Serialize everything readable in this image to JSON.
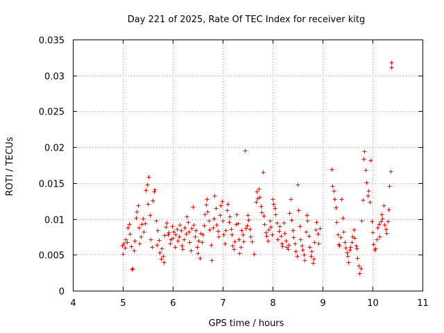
{
  "chart_data": {
    "type": "scatter",
    "title": "Day 221 of 2025, Rate Of TEC Index for receiver kitg",
    "xlabel": "GPS time / hours",
    "ylabel": "ROTI / TECUs",
    "xlim": [
      4,
      11
    ],
    "ylim": [
      0,
      0.035
    ],
    "x_ticks": [
      "4",
      "5",
      "6",
      "7",
      "8",
      "9",
      "10",
      "11"
    ],
    "y_ticks": [
      "0",
      "0.005",
      "0.01",
      "0.015",
      "0.02",
      "0.025",
      "0.03",
      "0.035"
    ],
    "grid": true,
    "marker": "+",
    "color": "#ff0000",
    "series": [
      {
        "name": "ROTI",
        "points": [
          [
            4.98,
            0.0063
          ],
          [
            5.0,
            0.0051
          ],
          [
            5.02,
            0.0066
          ],
          [
            5.04,
            0.006
          ],
          [
            5.06,
            0.0072
          ],
          [
            5.08,
            0.0068
          ],
          [
            5.1,
            0.0088
          ],
          [
            5.12,
            0.0093
          ],
          [
            5.14,
            0.0079
          ],
          [
            5.16,
            0.0062
          ],
          [
            5.18,
            0.003
          ],
          [
            5.2,
            0.0031
          ],
          [
            5.22,
            0.0056
          ],
          [
            5.24,
            0.007
          ],
          [
            5.26,
            0.0102
          ],
          [
            5.28,
            0.011
          ],
          [
            5.3,
            0.0119
          ],
          [
            5.32,
            0.0088
          ],
          [
            5.34,
            0.0066
          ],
          [
            5.36,
            0.0075
          ],
          [
            5.38,
            0.0093
          ],
          [
            5.4,
            0.0101
          ],
          [
            5.42,
            0.0082
          ],
          [
            5.44,
            0.0094
          ],
          [
            5.46,
            0.014
          ],
          [
            5.48,
            0.0148
          ],
          [
            5.5,
            0.0121
          ],
          [
            5.52,
            0.0159
          ],
          [
            5.54,
            0.0105
          ],
          [
            5.56,
            0.0072
          ],
          [
            5.58,
            0.0061
          ],
          [
            5.6,
            0.0126
          ],
          [
            5.62,
            0.0138
          ],
          [
            5.64,
            0.0141
          ],
          [
            5.66,
            0.0098
          ],
          [
            5.68,
            0.0064
          ],
          [
            5.7,
            0.0084
          ],
          [
            5.72,
            0.0071
          ],
          [
            5.74,
            0.0053
          ],
          [
            5.76,
            0.0044
          ],
          [
            5.78,
            0.0059
          ],
          [
            5.8,
            0.0048
          ],
          [
            5.82,
            0.004
          ],
          [
            5.84,
            0.0077
          ],
          [
            5.86,
            0.0089
          ],
          [
            5.88,
            0.0095
          ],
          [
            5.9,
            0.0078
          ],
          [
            5.92,
            0.0081
          ],
          [
            5.94,
            0.0066
          ],
          [
            5.96,
            0.0072
          ],
          [
            5.98,
            0.009
          ],
          [
            6.0,
            0.0073
          ],
          [
            6.02,
            0.0082
          ],
          [
            6.04,
            0.0061
          ],
          [
            6.06,
            0.0078
          ],
          [
            6.08,
            0.0086
          ],
          [
            6.1,
            0.007
          ],
          [
            6.12,
            0.0075
          ],
          [
            6.14,
            0.0092
          ],
          [
            6.16,
            0.0084
          ],
          [
            6.18,
            0.0063
          ],
          [
            6.2,
            0.0058
          ],
          [
            6.22,
            0.0072
          ],
          [
            6.24,
            0.0088
          ],
          [
            6.26,
            0.0079
          ],
          [
            6.28,
            0.0103
          ],
          [
            6.3,
            0.0096
          ],
          [
            6.32,
            0.0082
          ],
          [
            6.34,
            0.0068
          ],
          [
            6.36,
            0.0056
          ],
          [
            6.38,
            0.0087
          ],
          [
            6.4,
            0.0117
          ],
          [
            6.42,
            0.0092
          ],
          [
            6.44,
            0.0075
          ],
          [
            6.46,
            0.0084
          ],
          [
            6.48,
            0.0061
          ],
          [
            6.5,
            0.0052
          ],
          [
            6.52,
            0.007
          ],
          [
            6.54,
            0.0045
          ],
          [
            6.56,
            0.008
          ],
          [
            6.58,
            0.0068
          ],
          [
            6.6,
            0.0078
          ],
          [
            6.62,
            0.0091
          ],
          [
            6.64,
            0.0106
          ],
          [
            6.66,
            0.012
          ],
          [
            6.68,
            0.0128
          ],
          [
            6.7,
            0.011
          ],
          [
            6.72,
            0.0098
          ],
          [
            6.74,
            0.0085
          ],
          [
            6.76,
            0.0064
          ],
          [
            6.78,
            0.0043
          ],
          [
            6.8,
            0.0088
          ],
          [
            6.82,
            0.0101
          ],
          [
            6.84,
            0.0132
          ],
          [
            6.86,
            0.0115
          ],
          [
            6.88,
            0.0092
          ],
          [
            6.9,
            0.0083
          ],
          [
            6.92,
            0.0075
          ],
          [
            6.94,
            0.0105
          ],
          [
            6.96,
            0.0119
          ],
          [
            6.98,
            0.0125
          ],
          [
            7.0,
            0.0098
          ],
          [
            7.02,
            0.0078
          ],
          [
            7.04,
            0.0066
          ],
          [
            7.06,
            0.0084
          ],
          [
            7.08,
            0.0112
          ],
          [
            7.1,
            0.0121
          ],
          [
            7.12,
            0.0096
          ],
          [
            7.14,
            0.0103
          ],
          [
            7.16,
            0.0086
          ],
          [
            7.18,
            0.0078
          ],
          [
            7.2,
            0.0063
          ],
          [
            7.22,
            0.0058
          ],
          [
            7.24,
            0.0069
          ],
          [
            7.26,
            0.0093
          ],
          [
            7.28,
            0.0106
          ],
          [
            7.3,
            0.0094
          ],
          [
            7.32,
            0.0072
          ],
          [
            7.34,
            0.0052
          ],
          [
            7.36,
            0.0061
          ],
          [
            7.38,
            0.0084
          ],
          [
            7.4,
            0.0078
          ],
          [
            7.42,
            0.0069
          ],
          [
            7.44,
            0.0195
          ],
          [
            7.46,
            0.0087
          ],
          [
            7.48,
            0.0091
          ],
          [
            7.5,
            0.0105
          ],
          [
            7.52,
            0.0099
          ],
          [
            7.54,
            0.0086
          ],
          [
            7.56,
            0.0075
          ],
          [
            7.58,
            0.0069
          ],
          [
            7.62,
            0.0051
          ],
          [
            7.66,
            0.0124
          ],
          [
            7.68,
            0.0138
          ],
          [
            7.7,
            0.0129
          ],
          [
            7.72,
            0.0142
          ],
          [
            7.74,
            0.0131
          ],
          [
            7.76,
            0.0118
          ],
          [
            7.78,
            0.0109
          ],
          [
            7.8,
            0.0165
          ],
          [
            7.82,
            0.0104
          ],
          [
            7.84,
            0.0093
          ],
          [
            7.86,
            0.0081
          ],
          [
            7.88,
            0.0076
          ],
          [
            7.9,
            0.007
          ],
          [
            7.92,
            0.0085
          ],
          [
            7.94,
            0.0098
          ],
          [
            7.96,
            0.0089
          ],
          [
            7.98,
            0.0078
          ],
          [
            8.0,
            0.0128
          ],
          [
            8.02,
            0.0121
          ],
          [
            8.04,
            0.0115
          ],
          [
            8.06,
            0.0106
          ],
          [
            8.08,
            0.0095
          ],
          [
            8.1,
            0.0072
          ],
          [
            8.12,
            0.0083
          ],
          [
            8.14,
            0.009
          ],
          [
            8.16,
            0.0076
          ],
          [
            8.18,
            0.0066
          ],
          [
            8.2,
            0.0062
          ],
          [
            8.22,
            0.0095
          ],
          [
            8.24,
            0.008
          ],
          [
            8.26,
            0.007
          ],
          [
            8.28,
            0.0061
          ],
          [
            8.3,
            0.0058
          ],
          [
            8.32,
            0.0064
          ],
          [
            8.34,
            0.0108
          ],
          [
            8.36,
            0.0128
          ],
          [
            8.38,
            0.0099
          ],
          [
            8.4,
            0.0084
          ],
          [
            8.42,
            0.0074
          ],
          [
            8.44,
            0.0066
          ],
          [
            8.46,
            0.0055
          ],
          [
            8.48,
            0.0048
          ],
          [
            8.5,
            0.0148
          ],
          [
            8.52,
            0.0112
          ],
          [
            8.54,
            0.009
          ],
          [
            8.56,
            0.0072
          ],
          [
            8.58,
            0.0063
          ],
          [
            8.6,
            0.0057
          ],
          [
            8.62,
            0.005
          ],
          [
            8.64,
            0.0043
          ],
          [
            8.66,
            0.0082
          ],
          [
            8.68,
            0.0105
          ],
          [
            8.7,
            0.0098
          ],
          [
            8.72,
            0.0076
          ],
          [
            8.74,
            0.0061
          ],
          [
            8.76,
            0.0048
          ],
          [
            8.78,
            0.0055
          ],
          [
            8.8,
            0.0039
          ],
          [
            8.82,
            0.0044
          ],
          [
            8.84,
            0.0068
          ],
          [
            8.86,
            0.0085
          ],
          [
            8.88,
            0.0096
          ],
          [
            8.9,
            0.0079
          ],
          [
            8.92,
            0.0066
          ],
          [
            8.94,
            0.0087
          ],
          [
            9.18,
            0.0169
          ],
          [
            9.2,
            0.0146
          ],
          [
            9.22,
            0.0139
          ],
          [
            9.24,
            0.0128
          ],
          [
            9.26,
            0.0116
          ],
          [
            9.28,
            0.0096
          ],
          [
            9.3,
            0.0078
          ],
          [
            9.32,
            0.0065
          ],
          [
            9.34,
            0.0063
          ],
          [
            9.36,
            0.0074
          ],
          [
            9.38,
            0.0128
          ],
          [
            9.4,
            0.0102
          ],
          [
            9.42,
            0.0082
          ],
          [
            9.44,
            0.0068
          ],
          [
            9.46,
            0.006
          ],
          [
            9.48,
            0.0053
          ],
          [
            9.5,
            0.0048
          ],
          [
            9.52,
            0.004
          ],
          [
            9.54,
            0.0057
          ],
          [
            9.56,
            0.0061
          ],
          [
            9.58,
            0.0068
          ],
          [
            9.6,
            0.0075
          ],
          [
            9.62,
            0.0085
          ],
          [
            9.64,
            0.0073
          ],
          [
            9.66,
            0.0063
          ],
          [
            9.68,
            0.0059
          ],
          [
            9.7,
            0.0045
          ],
          [
            9.72,
            0.0035
          ],
          [
            9.74,
            0.0024
          ],
          [
            9.76,
            0.0031
          ],
          [
            9.78,
            0.0098
          ],
          [
            9.8,
            0.0127
          ],
          [
            9.82,
            0.0184
          ],
          [
            9.84,
            0.0194
          ],
          [
            9.86,
            0.0168
          ],
          [
            9.88,
            0.0151
          ],
          [
            9.9,
            0.0132
          ],
          [
            9.92,
            0.0139
          ],
          [
            9.94,
            0.0124
          ],
          [
            9.96,
            0.0182
          ],
          [
            9.98,
            0.0097
          ],
          [
            10.0,
            0.0081
          ],
          [
            10.02,
            0.0065
          ],
          [
            10.04,
            0.0057
          ],
          [
            10.06,
            0.0059
          ],
          [
            10.08,
            0.0072
          ],
          [
            10.1,
            0.0088
          ],
          [
            10.12,
            0.0093
          ],
          [
            10.14,
            0.0075
          ],
          [
            10.16,
            0.0097
          ],
          [
            10.18,
            0.0106
          ],
          [
            10.2,
            0.0101
          ],
          [
            10.22,
            0.0119
          ],
          [
            10.24,
            0.0092
          ],
          [
            10.26,
            0.0086
          ],
          [
            10.28,
            0.008
          ],
          [
            10.3,
            0.0097
          ],
          [
            10.32,
            0.0113
          ],
          [
            10.34,
            0.0146
          ],
          [
            10.36,
            0.0166
          ],
          [
            10.38,
            0.0318
          ],
          [
            10.38,
            0.0311
          ]
        ]
      }
    ]
  }
}
